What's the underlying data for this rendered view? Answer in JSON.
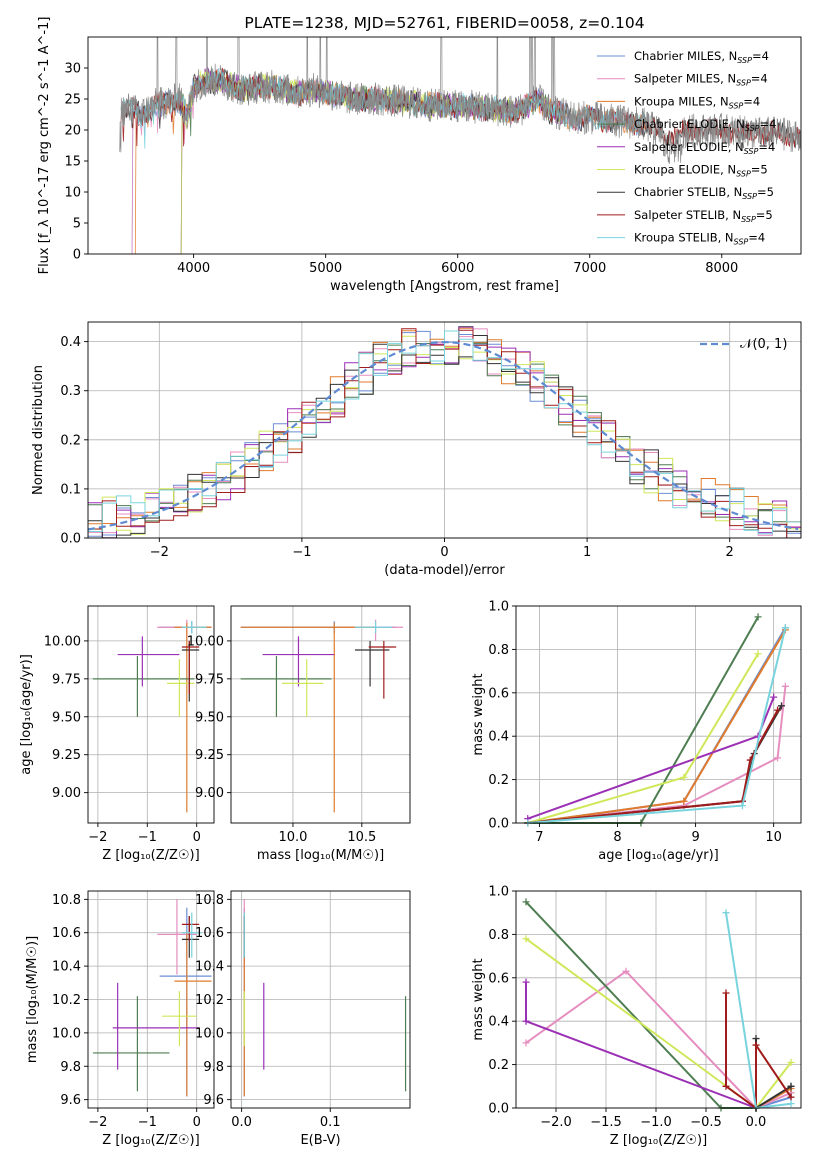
{
  "chart_data": [
    {
      "id": "spectrum",
      "type": "line",
      "title": "PLATE=1238, MJD=52761, FIBERID=0058, z=0.104",
      "xlabel": "wavelength [Angstrom, rest frame]",
      "ylabel": "Flux [f_λ 10^-17 erg cm^-2 s^-1 A^-1]",
      "xlim": [
        3200,
        8600
      ],
      "ylim": [
        0,
        35
      ],
      "xticks": [
        4000,
        5000,
        6000,
        7000,
        8000
      ],
      "yticks": [
        0,
        5,
        10,
        15,
        20,
        25,
        30
      ],
      "legend_position": "upper right",
      "series": [
        {
          "name": "Chabrier MILES",
          "nssp": "4",
          "color": "#6b8ed6"
        },
        {
          "name": "Salpeter MILES",
          "nssp": "4",
          "color": "#e68ec0"
        },
        {
          "name": "Kroupa MILES",
          "nssp": "4",
          "color": "#e07b2e"
        },
        {
          "name": "Chabrier ELODIE",
          "nssp": "4",
          "color": "#4d7d50"
        },
        {
          "name": "Salpeter ELODIE",
          "nssp": "4",
          "color": "#9b30b5"
        },
        {
          "name": "Kroupa ELODIE",
          "nssp": "5",
          "color": "#cfe85a"
        },
        {
          "name": "Chabrier STELIB",
          "nssp": "5",
          "color": "#333333"
        },
        {
          "name": "Salpeter STELIB",
          "nssp": "5",
          "color": "#a01b1b"
        },
        {
          "name": "Kroupa STELIB",
          "nssp": "4",
          "color": "#79d3dd"
        }
      ],
      "data_spectrum": [
        [
          3450,
          23
        ],
        [
          3520,
          23.5
        ],
        [
          3600,
          22.5
        ],
        [
          3700,
          24
        ],
        [
          3800,
          24.5
        ],
        [
          3900,
          25
        ],
        [
          3950,
          22
        ],
        [
          4000,
          27
        ],
        [
          4100,
          28
        ],
        [
          4200,
          28
        ],
        [
          4300,
          27
        ],
        [
          4400,
          26.5
        ],
        [
          4500,
          27
        ],
        [
          4600,
          27
        ],
        [
          4700,
          26.5
        ],
        [
          4800,
          26
        ],
        [
          4900,
          26.5
        ],
        [
          5000,
          26
        ],
        [
          5100,
          25.5
        ],
        [
          5200,
          25
        ],
        [
          5400,
          25
        ],
        [
          5600,
          24.5
        ],
        [
          5800,
          24
        ],
        [
          6000,
          24
        ],
        [
          6200,
          23.5
        ],
        [
          6400,
          23
        ],
        [
          6500,
          23.5
        ],
        [
          6600,
          25
        ],
        [
          6700,
          23
        ],
        [
          6800,
          22.5
        ],
        [
          6900,
          22
        ],
        [
          7000,
          22
        ],
        [
          7200,
          21.5
        ],
        [
          7400,
          21
        ],
        [
          7600,
          19
        ],
        [
          7800,
          20
        ],
        [
          8000,
          20
        ],
        [
          8200,
          19.5
        ],
        [
          8400,
          19.5
        ],
        [
          8600,
          19
        ]
      ]
    },
    {
      "id": "residuals",
      "type": "line",
      "xlabel": "(data-model)/error",
      "ylabel": "Normed distribution",
      "xlim": [
        -2.5,
        2.5
      ],
      "ylim": [
        0,
        0.44
      ],
      "xticks": [
        -2,
        -1,
        0,
        1,
        2
      ],
      "yticks": [
        0.0,
        0.1,
        0.2,
        0.3,
        0.4
      ],
      "legend": [
        "𝒩(0, 1)"
      ],
      "legend_position": "upper right",
      "reference_curve": {
        "name": "𝒩(0, 1)",
        "mean": 0,
        "sigma": 1,
        "color": "#5f8bd3"
      }
    },
    {
      "id": "age_vs_Z",
      "type": "scatter",
      "xlabel": "Z [log₁₀(Z/Z☉)]",
      "ylabel": "age  [log₁₀(age/yr)]",
      "xlim": [
        -2.2,
        0.35
      ],
      "ylim": [
        8.8,
        10.23
      ],
      "xticks": [
        -2,
        -1,
        0
      ],
      "yticks": [
        9.0,
        9.25,
        9.5,
        9.75,
        10.0
      ],
      "points": [
        {
          "series": "Chabrier MILES",
          "x": -0.1,
          "y": 10.09,
          "x_lo": -0.75,
          "x_hi": 0.3,
          "y_lo": 10.05,
          "y_hi": 10.13
        },
        {
          "series": "Salpeter MILES",
          "x": -0.2,
          "y": 10.09,
          "x_lo": -0.8,
          "x_hi": 0.15,
          "y_lo": 10.0,
          "y_hi": 10.14
        },
        {
          "series": "Kroupa MILES",
          "x": -0.2,
          "y": 10.09,
          "x_lo": -0.45,
          "x_hi": 0.3,
          "y_lo": 8.87,
          "y_hi": 10.12
        },
        {
          "series": "Chabrier ELODIE",
          "x": -1.2,
          "y": 9.75,
          "x_lo": -2.1,
          "x_hi": -0.05,
          "y_lo": 9.5,
          "y_hi": 9.9
        },
        {
          "series": "Salpeter ELODIE",
          "x": -1.1,
          "y": 9.91,
          "x_lo": -1.6,
          "x_hi": -0.35,
          "y_lo": 9.7,
          "y_hi": 10.03
        },
        {
          "series": "Kroupa ELODIE",
          "x": -0.35,
          "y": 9.72,
          "x_lo": -0.6,
          "x_hi": -0.05,
          "y_lo": 9.5,
          "y_hi": 9.88
        },
        {
          "series": "Chabrier STELIB",
          "x": -0.15,
          "y": 9.94,
          "x_lo": -0.3,
          "x_hi": 0.05,
          "y_lo": 9.6,
          "y_hi": 10.0
        },
        {
          "series": "Salpeter STELIB",
          "x": -0.15,
          "y": 9.96,
          "x_lo": -0.3,
          "x_hi": 0.05,
          "y_lo": 9.65,
          "y_hi": 10.0
        },
        {
          "series": "Kroupa STELIB",
          "x": -0.1,
          "y": 10.09,
          "x_lo": -0.3,
          "x_hi": 0.2,
          "y_lo": 10.05,
          "y_hi": 10.13
        }
      ]
    },
    {
      "id": "age_vs_mass",
      "type": "scatter",
      "xlabel": "mass [log₁₀(M/M☉)]",
      "ylabel": "",
      "xlim": [
        9.55,
        10.85
      ],
      "ylim": [
        8.8,
        10.23
      ],
      "xticks": [
        10.0,
        10.5
      ],
      "yticks": [
        9.0,
        9.25,
        9.5,
        9.75,
        10.0
      ],
      "points": [
        {
          "series": "Chabrier MILES",
          "x": 10.3,
          "y": 10.09,
          "x_lo": 9.62,
          "x_hi": 10.75,
          "y_lo": 10.05,
          "y_hi": 10.13
        },
        {
          "series": "Salpeter MILES",
          "x": 10.6,
          "y": 10.09,
          "x_lo": 10.35,
          "x_hi": 10.8,
          "y_lo": 10.0,
          "y_hi": 10.14
        },
        {
          "series": "Kroupa MILES",
          "x": 10.3,
          "y": 10.09,
          "x_lo": 9.62,
          "x_hi": 10.6,
          "y_lo": 8.87,
          "y_hi": 10.12
        },
        {
          "series": "Chabrier ELODIE",
          "x": 9.88,
          "y": 9.75,
          "x_lo": 9.62,
          "x_hi": 10.28,
          "y_lo": 9.5,
          "y_hi": 9.9
        },
        {
          "series": "Salpeter ELODIE",
          "x": 10.04,
          "y": 9.91,
          "x_lo": 9.78,
          "x_hi": 10.3,
          "y_lo": 9.7,
          "y_hi": 10.03
        },
        {
          "series": "Kroupa ELODIE",
          "x": 10.1,
          "y": 9.72,
          "x_lo": 9.92,
          "x_hi": 10.22,
          "y_lo": 9.5,
          "y_hi": 9.88
        },
        {
          "series": "Chabrier STELIB",
          "x": 10.56,
          "y": 9.94,
          "x_lo": 10.45,
          "x_hi": 10.7,
          "y_lo": 9.7,
          "y_hi": 10.0
        },
        {
          "series": "Salpeter STELIB",
          "x": 10.66,
          "y": 9.96,
          "x_lo": 10.55,
          "x_hi": 10.75,
          "y_lo": 9.62,
          "y_hi": 10.0
        },
        {
          "series": "Kroupa STELIB",
          "x": 10.6,
          "y": 10.09,
          "x_lo": 10.45,
          "x_hi": 10.72,
          "y_lo": 10.05,
          "y_hi": 10.13
        }
      ]
    },
    {
      "id": "weight_vs_age",
      "type": "line",
      "xlabel": "age  [log₁₀(age/yr)]",
      "ylabel": "mass weight",
      "xlim": [
        6.7,
        10.35
      ],
      "ylim": [
        0,
        1.0
      ],
      "xticks": [
        7,
        8,
        9,
        10
      ],
      "yticks": [
        0.0,
        0.2,
        0.4,
        0.6,
        0.8,
        1.0
      ],
      "series": [
        {
          "name": "Chabrier MILES",
          "points": [
            [
              6.85,
              0.0
            ],
            [
              8.85,
              0.1
            ],
            [
              10.15,
              0.9
            ]
          ]
        },
        {
          "name": "Salpeter MILES",
          "points": [
            [
              6.85,
              0.0
            ],
            [
              8.85,
              0.08
            ],
            [
              10.05,
              0.3
            ],
            [
              10.15,
              0.63
            ]
          ]
        },
        {
          "name": "Kroupa MILES",
          "points": [
            [
              6.85,
              0.0
            ],
            [
              8.85,
              0.1
            ],
            [
              10.15,
              0.89
            ]
          ]
        },
        {
          "name": "Chabrier ELODIE",
          "points": [
            [
              6.85,
              0.0
            ],
            [
              8.3,
              0.0
            ],
            [
              9.8,
              0.95
            ]
          ]
        },
        {
          "name": "Salpeter ELODIE",
          "points": [
            [
              6.85,
              0.02
            ],
            [
              9.8,
              0.4
            ],
            [
              10.0,
              0.58
            ]
          ]
        },
        {
          "name": "Kroupa ELODIE",
          "points": [
            [
              6.85,
              0.0
            ],
            [
              8.85,
              0.21
            ],
            [
              9.8,
              0.78
            ]
          ]
        },
        {
          "name": "Chabrier STELIB",
          "points": [
            [
              6.85,
              0.0
            ],
            [
              9.6,
              0.1
            ],
            [
              9.75,
              0.32
            ],
            [
              10.1,
              0.54
            ]
          ]
        },
        {
          "name": "Salpeter STELIB",
          "points": [
            [
              6.85,
              0.0
            ],
            [
              9.6,
              0.1
            ],
            [
              9.7,
              0.29
            ],
            [
              10.05,
              0.52
            ]
          ]
        },
        {
          "name": "Kroupa STELIB",
          "points": [
            [
              6.85,
              0.0
            ],
            [
              9.6,
              0.08
            ],
            [
              10.15,
              0.9
            ]
          ]
        }
      ]
    },
    {
      "id": "mass_vs_Z",
      "type": "scatter",
      "xlabel": "Z [log₁₀(Z/Z☉)]",
      "ylabel": "mass [log₁₀(M/M☉)]",
      "xlim": [
        -2.2,
        0.35
      ],
      "ylim": [
        9.55,
        10.85
      ],
      "xticks": [
        -2,
        -1,
        0
      ],
      "yticks": [
        9.6,
        9.8,
        10.0,
        10.2,
        10.4,
        10.6,
        10.8
      ],
      "points": [
        {
          "series": "Chabrier MILES",
          "x": -0.2,
          "y": 10.34,
          "x_lo": -0.75,
          "x_hi": 0.3,
          "y_lo": 9.62,
          "y_hi": 10.75
        },
        {
          "series": "Salpeter MILES",
          "x": -0.4,
          "y": 10.59,
          "x_lo": -0.8,
          "x_hi": 0.0,
          "y_lo": 10.35,
          "y_hi": 10.8
        },
        {
          "series": "Kroupa MILES",
          "x": -0.2,
          "y": 10.31,
          "x_lo": -0.45,
          "x_hi": 0.3,
          "y_lo": 9.62,
          "y_hi": 10.6
        },
        {
          "series": "Chabrier ELODIE",
          "x": -1.2,
          "y": 9.88,
          "x_lo": -2.1,
          "x_hi": -0.55,
          "y_lo": 9.65,
          "y_hi": 10.22
        },
        {
          "series": "Salpeter ELODIE",
          "x": -1.6,
          "y": 10.03,
          "x_lo": -1.7,
          "x_hi": 0.05,
          "y_lo": 9.78,
          "y_hi": 10.3
        },
        {
          "series": "Kroupa ELODIE",
          "x": -0.35,
          "y": 10.1,
          "x_lo": -0.7,
          "x_hi": 0.0,
          "y_lo": 9.92,
          "y_hi": 10.25
        },
        {
          "series": "Chabrier STELIB",
          "x": -0.15,
          "y": 10.56,
          "x_lo": -0.3,
          "x_hi": 0.05,
          "y_lo": 10.45,
          "y_hi": 10.7
        },
        {
          "series": "Salpeter STELIB",
          "x": -0.15,
          "y": 10.65,
          "x_lo": -0.3,
          "x_hi": 0.05,
          "y_lo": 10.55,
          "y_hi": 10.7
        },
        {
          "series": "Kroupa STELIB",
          "x": -0.1,
          "y": 10.6,
          "x_lo": -0.3,
          "x_hi": 0.1,
          "y_lo": 10.45,
          "y_hi": 10.72
        }
      ]
    },
    {
      "id": "mass_vs_ebv",
      "type": "scatter",
      "xlabel": "E(B-V)",
      "ylabel": "",
      "xlim": [
        -0.012,
        0.19
      ],
      "ylim": [
        9.55,
        10.85
      ],
      "xticks": [
        0.0,
        0.1
      ],
      "yticks": [
        9.6,
        9.8,
        10.0,
        10.2,
        10.4,
        10.6,
        10.8
      ],
      "points": [
        {
          "series": "Chabrier MILES",
          "x": 0.003,
          "y": 10.34,
          "y_lo": 9.62,
          "y_hi": 10.75
        },
        {
          "series": "Salpeter MILES",
          "x": 0.003,
          "y": 10.59,
          "y_lo": 10.35,
          "y_hi": 10.8
        },
        {
          "series": "Kroupa MILES",
          "x": 0.003,
          "y": 10.31,
          "y_lo": 9.62,
          "y_hi": 10.6
        },
        {
          "series": "Chabrier ELODIE",
          "x": 0.185,
          "y": 9.88,
          "y_lo": 9.65,
          "y_hi": 10.22
        },
        {
          "series": "Salpeter ELODIE",
          "x": 0.025,
          "y": 10.03,
          "y_lo": 9.78,
          "y_hi": 10.3
        },
        {
          "series": "Kroupa ELODIE",
          "x": 0.003,
          "y": 10.1,
          "y_lo": 9.92,
          "y_hi": 10.25
        },
        {
          "series": "Chabrier STELIB",
          "x": 0.003,
          "y": 10.56,
          "y_lo": 10.45,
          "y_hi": 10.7
        },
        {
          "series": "Salpeter STELIB",
          "x": 0.003,
          "y": 10.65,
          "y_lo": 10.55,
          "y_hi": 10.7
        },
        {
          "series": "Kroupa STELIB",
          "x": 0.003,
          "y": 10.6,
          "y_lo": 10.45,
          "y_hi": 10.72
        }
      ]
    },
    {
      "id": "weight_vs_Z",
      "type": "line",
      "xlabel": "Z [log₁₀(Z/Z☉)]",
      "ylabel": "mass weight",
      "xlim": [
        -2.4,
        0.45
      ],
      "ylim": [
        0,
        1.0
      ],
      "xticks": [
        -2.0,
        -1.5,
        -1.0,
        -0.5,
        0.0
      ],
      "yticks": [
        0.0,
        0.2,
        0.4,
        0.6,
        0.8,
        1.0
      ],
      "series": [
        {
          "name": "Chabrier MILES",
          "points": [
            [
              0.0,
              0.0
            ],
            [
              0.35,
              0.05
            ],
            [
              0.35,
              0.1
            ]
          ]
        },
        {
          "name": "Salpeter MILES",
          "points": [
            [
              -2.3,
              0.3
            ],
            [
              -1.3,
              0.63
            ],
            [
              0.0,
              0.0
            ],
            [
              0.35,
              0.07
            ]
          ]
        },
        {
          "name": "Kroupa MILES",
          "points": [
            [
              0.0,
              0.0
            ],
            [
              0.35,
              0.09
            ]
          ]
        },
        {
          "name": "Chabrier ELODIE",
          "points": [
            [
              -2.3,
              0.95
            ],
            [
              -0.35,
              0.0
            ],
            [
              0.0,
              0.0
            ]
          ]
        },
        {
          "name": "Salpeter ELODIE",
          "points": [
            [
              -2.3,
              0.58
            ],
            [
              -2.3,
              0.4
            ],
            [
              0.0,
              0.0
            ]
          ]
        },
        {
          "name": "Kroupa ELODIE",
          "points": [
            [
              -2.3,
              0.78
            ],
            [
              0.0,
              0.0
            ],
            [
              0.35,
              0.21
            ]
          ]
        },
        {
          "name": "Chabrier STELIB",
          "points": [
            [
              0.0,
              0.32
            ],
            [
              0.0,
              0.0
            ],
            [
              0.35,
              0.1
            ]
          ]
        },
        {
          "name": "Salpeter STELIB",
          "points": [
            [
              -0.3,
              0.53
            ],
            [
              -0.3,
              0.1
            ],
            [
              0.0,
              0.0
            ],
            [
              0.0,
              0.29
            ],
            [
              0.35,
              0.05
            ]
          ]
        },
        {
          "name": "Kroupa STELIB",
          "points": [
            [
              -0.3,
              0.9
            ],
            [
              0.0,
              0.0
            ],
            [
              0.35,
              0.02
            ]
          ]
        }
      ]
    }
  ]
}
